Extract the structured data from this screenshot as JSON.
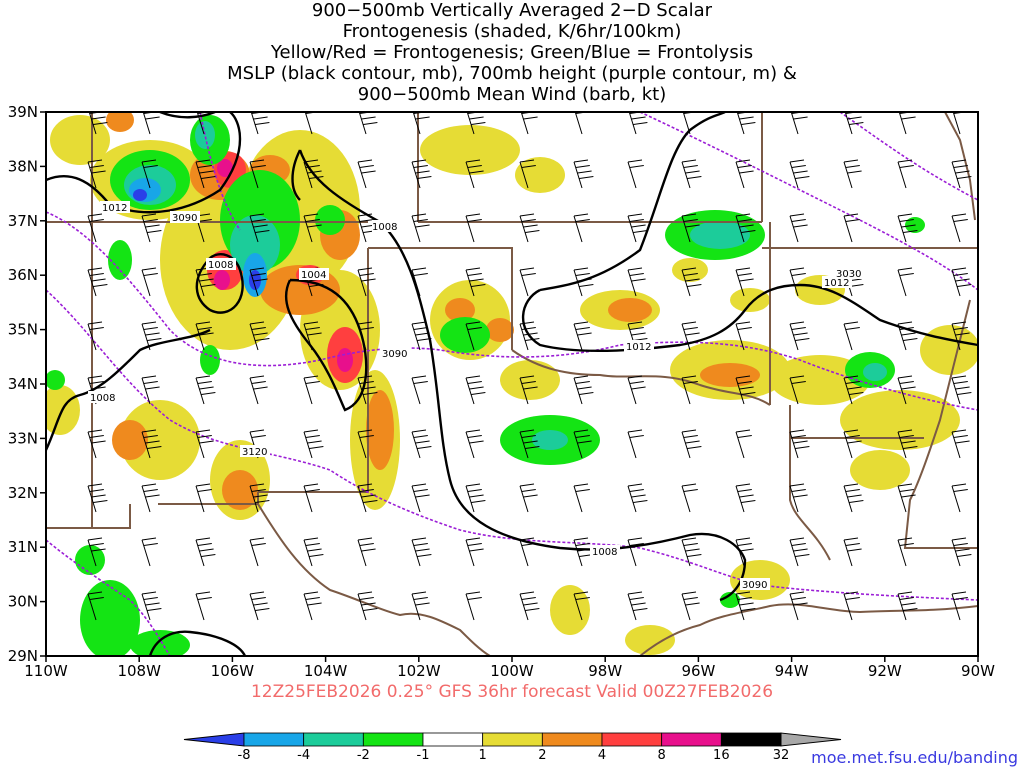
{
  "title_lines": [
    "900−500mb Vertically Averaged 2−D Scalar",
    "Frontogenesis (shaded, K/6hr/100km)",
    "Yellow/Red = Frontogenesis;  Green/Blue = Frontolysis",
    "MSLP (black contour, mb), 700mb height (purple contour, m) &",
    "900−500mb Mean Wind (barb, kt)"
  ],
  "valid_text": "12Z25FEB2026 0.25° GFS 36hr forecast Valid 00Z27FEB2026",
  "credit_url": "moe.met.fsu.edu/banding",
  "map": {
    "lon_range": [
      -110,
      -90
    ],
    "lat_range": [
      29,
      39
    ],
    "lon_labels": [
      "110W",
      "108W",
      "106W",
      "104W",
      "102W",
      "100W",
      "98W",
      "96W",
      "94W",
      "92W",
      "90W"
    ],
    "lat_labels": [
      "39N",
      "38N",
      "37N",
      "36N",
      "35N",
      "34N",
      "33N",
      "32N",
      "31N",
      "30N",
      "29N"
    ]
  },
  "colorbar": {
    "labels": [
      "-8",
      "-4",
      "-2",
      "-1",
      "1",
      "2",
      "4",
      "8",
      "16",
      "32"
    ],
    "colors": [
      "#2a3fe8",
      "#18a6e8",
      "#1ccc9a",
      "#14e414",
      "#ffffff",
      "#e6dc35",
      "#ef8a1e",
      "#ff3f3f",
      "#e8108c",
      "#000000",
      "#a8a8a8"
    ]
  },
  "contour_labels": {
    "mslp": [
      "1012",
      "1008",
      "1004",
      "1008",
      "1012",
      "1012",
      "1008",
      "1008"
    ],
    "height": [
      "3090",
      "3090",
      "3120",
      "3030",
      "3090"
    ]
  },
  "colors": {
    "mslp": "#000000",
    "height": "#9b1ed6",
    "borders": "#7b5a45",
    "valid_text": "#f26b6b"
  }
}
